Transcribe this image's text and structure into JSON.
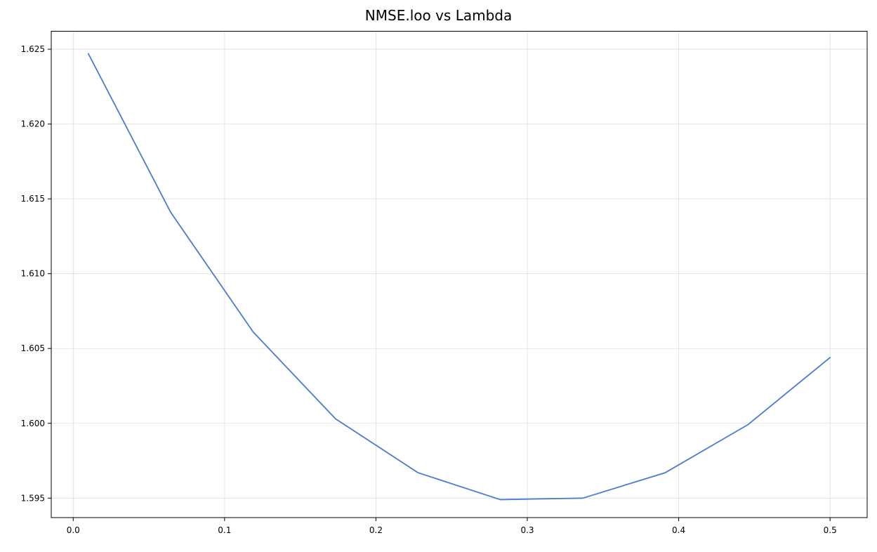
{
  "chart_data": {
    "type": "line",
    "title": "NMSE.loo vs Lambda",
    "xlabel": "",
    "ylabel": "",
    "xlim": [
      -0.0145,
      0.5245
    ],
    "ylim": [
      1.5937,
      1.6262
    ],
    "xticks": [
      0.0,
      0.1,
      0.2,
      0.3,
      0.4,
      0.5
    ],
    "xtick_labels": [
      "0.0",
      "0.1",
      "0.2",
      "0.3",
      "0.4",
      "0.5"
    ],
    "yticks": [
      1.595,
      1.6,
      1.605,
      1.61,
      1.615,
      1.62,
      1.625
    ],
    "ytick_labels": [
      "1.595",
      "1.600",
      "1.605",
      "1.610",
      "1.615",
      "1.620",
      "1.625"
    ],
    "grid": true,
    "series": [
      {
        "color": "#4a7bd0",
        "x": [
          0.01,
          0.0644,
          0.1189,
          0.1733,
          0.2278,
          0.2822,
          0.3367,
          0.3911,
          0.4456,
          0.5
        ],
        "y": [
          1.6247,
          1.6141,
          1.6061,
          1.6003,
          1.5967,
          1.5949,
          1.595,
          1.5967,
          1.5999,
          1.6044
        ]
      }
    ]
  }
}
